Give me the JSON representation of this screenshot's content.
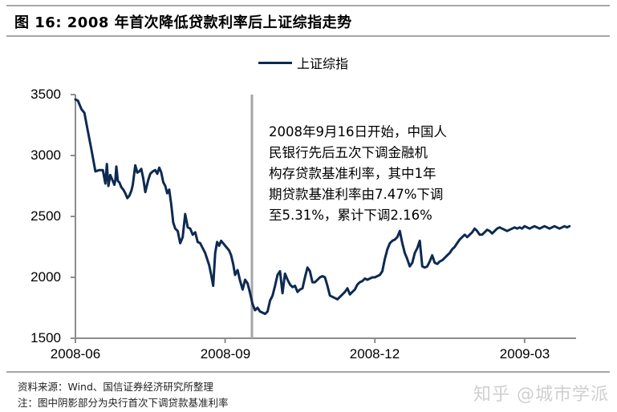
{
  "header": {
    "title": "图 16: 2008 年首次降低贷款利率后上证综指走势"
  },
  "legend": {
    "label": "上证综指"
  },
  "annotation": {
    "text": "2008年9月16日开始，中国人\n民银行先后五次下调金融机\n构存贷款基准利率，其中1年\n期贷款基准利率由7.47%下调\n至5.31%，累计下调2.16%"
  },
  "footer": {
    "source": "资料来源：Wind、国信证券经济研究所整理",
    "note": "注：图中阴影部分为央行首次下调贷款基准利率",
    "watermark": "知乎 @城市学派"
  },
  "colors": {
    "line": "#0d2a52",
    "axis": "#8c8c8c",
    "marker_line": "#a6a6a6"
  },
  "chart_data": {
    "type": "line",
    "title": "图 16: 2008 年首次降低贷款利率后上证综指走势",
    "xlabel": "",
    "ylabel": "",
    "ylim": [
      1500,
      3500
    ],
    "yticks": [
      "3500",
      "3000",
      "2500",
      "2000",
      "1500"
    ],
    "xticks": [
      "2008-06",
      "2008-09",
      "2008-12",
      "2009-03"
    ],
    "grid": false,
    "legend_position": "top-center",
    "marker_event": {
      "date": "2008-09-16",
      "label": "首次下调贷款基准利率"
    },
    "series": [
      {
        "name": "上证综指",
        "x_months_from_2008_06": [
          0.0,
          0.05,
          0.12,
          0.18,
          0.25,
          0.32,
          0.4,
          0.48,
          0.55,
          0.6,
          0.63,
          0.66,
          0.7,
          0.74,
          0.76,
          0.78,
          0.8,
          0.82,
          0.85,
          0.88,
          0.92,
          0.96,
          1.0,
          1.04,
          1.08,
          1.12,
          1.15,
          1.2,
          1.24,
          1.28,
          1.32,
          1.36,
          1.4,
          1.46,
          1.5,
          1.55,
          1.6,
          1.64,
          1.68,
          1.72,
          1.76,
          1.8,
          1.84,
          1.88,
          1.92,
          1.96,
          2.0,
          2.05,
          2.1,
          2.15,
          2.2,
          2.25,
          2.3,
          2.35,
          2.4,
          2.45,
          2.5,
          2.55,
          2.6,
          2.64,
          2.68,
          2.72,
          2.76,
          2.8,
          2.84,
          2.88,
          2.92,
          2.96,
          3.0,
          3.04,
          3.08,
          3.12,
          3.16,
          3.2,
          3.25,
          3.3,
          3.35,
          3.4,
          3.45,
          3.5,
          3.55,
          3.6,
          3.65,
          3.7,
          3.75,
          3.8,
          3.85,
          3.9,
          3.95,
          4.0,
          4.05,
          4.1,
          4.15,
          4.2,
          4.25,
          4.3,
          4.35,
          4.4,
          4.45,
          4.5,
          4.55,
          4.6,
          4.65,
          4.7,
          4.75,
          4.8,
          4.85,
          4.9,
          4.95,
          5.0,
          5.05,
          5.1,
          5.15,
          5.2,
          5.25,
          5.3,
          5.35,
          5.4,
          5.45,
          5.5,
          5.55,
          5.6,
          5.65,
          5.7,
          5.75,
          5.8,
          5.85,
          5.9,
          5.95,
          6.0,
          6.05,
          6.1,
          6.15,
          6.2,
          6.25,
          6.3,
          6.35,
          6.4,
          6.45,
          6.5,
          6.55,
          6.6,
          6.65,
          6.7,
          6.75,
          6.8,
          6.85,
          6.9,
          6.95,
          7.0,
          7.05,
          7.1,
          7.15,
          7.2,
          7.25,
          7.3,
          7.35,
          7.4,
          7.45,
          7.5,
          7.55,
          7.6,
          7.65,
          7.7,
          7.75,
          7.8,
          7.85,
          7.9,
          7.95,
          8.0,
          8.05,
          8.1,
          8.15,
          8.2,
          8.25,
          8.3,
          8.35,
          8.4,
          8.45,
          8.5,
          8.55,
          8.6,
          8.65,
          8.7,
          8.75,
          8.8,
          8.85,
          8.9,
          8.95,
          9.0,
          9.05,
          9.1,
          9.15,
          9.2,
          9.25,
          9.3,
          9.35,
          9.4,
          9.45,
          9.5,
          9.55,
          9.6,
          9.65,
          9.7,
          9.75,
          9.8,
          9.85,
          9.9,
          9.95,
          10.0
        ],
        "values": [
          3460,
          3450,
          3380,
          3350,
          3200,
          3050,
          2870,
          2880,
          2880,
          2770,
          2930,
          2750,
          2840,
          2800,
          2780,
          2760,
          2800,
          2910,
          2790,
          2780,
          2740,
          2720,
          2690,
          2650,
          2670,
          2710,
          2760,
          2920,
          2860,
          2870,
          2890,
          2810,
          2700,
          2800,
          2850,
          2870,
          2880,
          2850,
          2900,
          2860,
          2780,
          2750,
          2690,
          2720,
          2600,
          2450,
          2400,
          2380,
          2280,
          2330,
          2520,
          2410,
          2400,
          2350,
          2370,
          2290,
          2280,
          2240,
          2200,
          2150,
          2100,
          2020,
          1930,
          2200,
          2290,
          2260,
          2300,
          2280,
          2260,
          2240,
          2220,
          2180,
          2110,
          2020,
          2060,
          1970,
          1900,
          1980,
          1950,
          1870,
          1780,
          1730,
          1750,
          1720,
          1710,
          1700,
          1720,
          1810,
          1850,
          1930,
          2020,
          2050,
          1870,
          2030,
          1980,
          1940,
          1920,
          1930,
          1880,
          1900,
          1910,
          2000,
          2080,
          2050,
          1960,
          1960,
          1980,
          2000,
          2010,
          2000,
          1930,
          1850,
          1840,
          1830,
          1820,
          1840,
          1860,
          1880,
          1910,
          1860,
          1880,
          1900,
          1940,
          1960,
          1970,
          1990,
          1980,
          1990,
          2000,
          2000,
          2010,
          2020,
          2050,
          2150,
          2230,
          2280,
          2300,
          2310,
          2330,
          2380,
          2280,
          2200,
          2150,
          2090,
          2120,
          2200,
          2240,
          2300,
          2090,
          2080,
          2090,
          2130,
          2180,
          2120,
          2110,
          2130,
          2140,
          2160,
          2180,
          2200,
          2230,
          2250,
          2280,
          2310,
          2330,
          2350,
          2330,
          2350,
          2370,
          2400,
          2380,
          2350,
          2350,
          2370,
          2390,
          2380,
          2360,
          2380,
          2400,
          2410,
          2400,
          2390,
          2380,
          2390,
          2400,
          2410,
          2400,
          2410,
          2400,
          2420,
          2410,
          2400,
          2410,
          2420,
          2410,
          2400,
          2410,
          2420,
          2410,
          2400,
          2410,
          2420,
          2410,
          2400,
          2410,
          2420,
          2410,
          2420
        ]
      }
    ]
  }
}
